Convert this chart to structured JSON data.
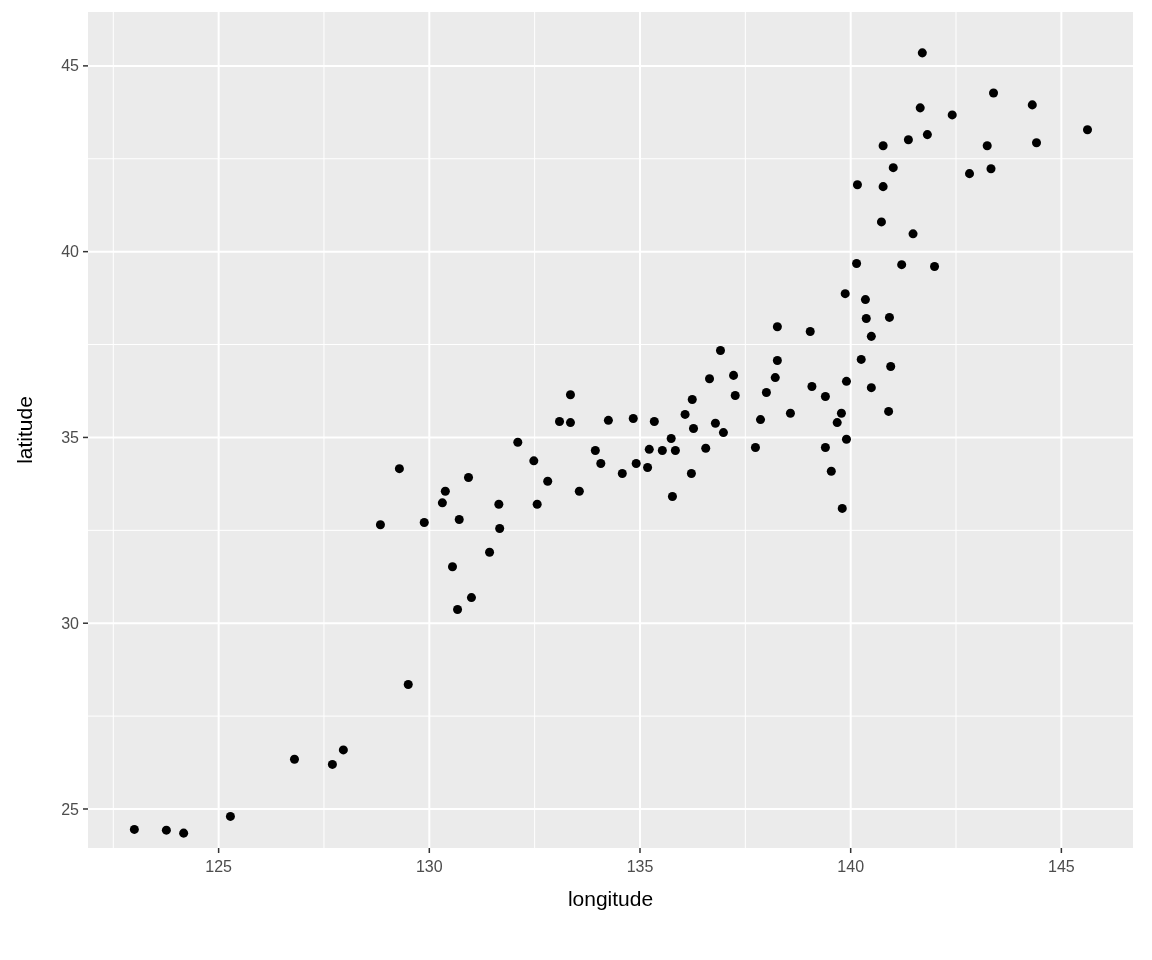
{
  "chart_data": {
    "type": "scatter",
    "xlabel": "longitude",
    "ylabel": "latitude",
    "xlim": [
      121.9,
      146.7
    ],
    "ylim": [
      23.95,
      46.45
    ],
    "xticks": [
      125,
      130,
      135,
      140,
      145
    ],
    "yticks": [
      25,
      30,
      35,
      40,
      45
    ],
    "grid": true,
    "marker": "circle",
    "series": [
      {
        "color": "#000000",
        "x": [
          123.0,
          123.76,
          124.17,
          125.28,
          126.8,
          127.7,
          127.96,
          129.5,
          128.84,
          129.88,
          130.71,
          130.31,
          130.55,
          131.0,
          130.67,
          129.29,
          130.38,
          130.93,
          131.43,
          131.65,
          131.67,
          132.1,
          132.48,
          132.56,
          132.81,
          133.09,
          133.35,
          133.35,
          133.56,
          133.94,
          134.07,
          134.25,
          134.58,
          134.84,
          134.91,
          135.18,
          135.22,
          135.34,
          135.53,
          135.74,
          135.84,
          135.77,
          136.07,
          136.24,
          136.27,
          136.22,
          136.56,
          136.65,
          136.79,
          136.91,
          136.98,
          137.22,
          137.26,
          137.74,
          137.86,
          138.0,
          138.21,
          138.26,
          138.26,
          138.57,
          139.04,
          139.08,
          139.4,
          139.4,
          139.54,
          139.68,
          139.78,
          139.8,
          139.9,
          139.9,
          139.87,
          140.14,
          140.25,
          140.35,
          140.37,
          140.49,
          140.49,
          140.9,
          140.92,
          140.95,
          141.21,
          141.99,
          140.73,
          141.48,
          140.16,
          140.77,
          141.01,
          142.82,
          143.33,
          140.77,
          141.37,
          141.82,
          143.24,
          144.41,
          145.62,
          142.41,
          141.65,
          143.39,
          144.31,
          141.7
        ],
        "values": [
          24.45,
          24.43,
          24.35,
          24.8,
          26.34,
          26.2,
          26.59,
          28.35,
          32.65,
          32.71,
          32.79,
          33.24,
          31.52,
          30.69,
          30.37,
          34.16,
          33.55,
          33.92,
          31.91,
          33.2,
          32.55,
          34.87,
          34.37,
          33.2,
          33.82,
          35.43,
          35.4,
          36.15,
          33.55,
          34.65,
          34.3,
          35.46,
          34.03,
          35.51,
          34.3,
          34.19,
          34.68,
          35.43,
          34.65,
          34.97,
          34.65,
          33.41,
          35.62,
          36.02,
          35.24,
          34.03,
          34.71,
          36.58,
          35.38,
          37.34,
          35.13,
          36.67,
          36.13,
          34.73,
          35.48,
          36.21,
          36.61,
          37.07,
          37.98,
          35.65,
          37.85,
          36.37,
          36.1,
          34.73,
          34.09,
          35.4,
          35.65,
          33.09,
          34.95,
          36.51,
          38.87,
          39.68,
          37.1,
          38.71,
          38.2,
          37.72,
          36.34,
          35.7,
          38.23,
          36.91,
          39.65,
          39.6,
          40.8,
          40.48,
          41.8,
          41.75,
          42.26,
          42.1,
          42.23,
          42.85,
          43.01,
          43.15,
          42.85,
          42.93,
          43.28,
          43.68,
          43.87,
          44.27,
          43.95,
          45.35
        ]
      }
    ]
  }
}
